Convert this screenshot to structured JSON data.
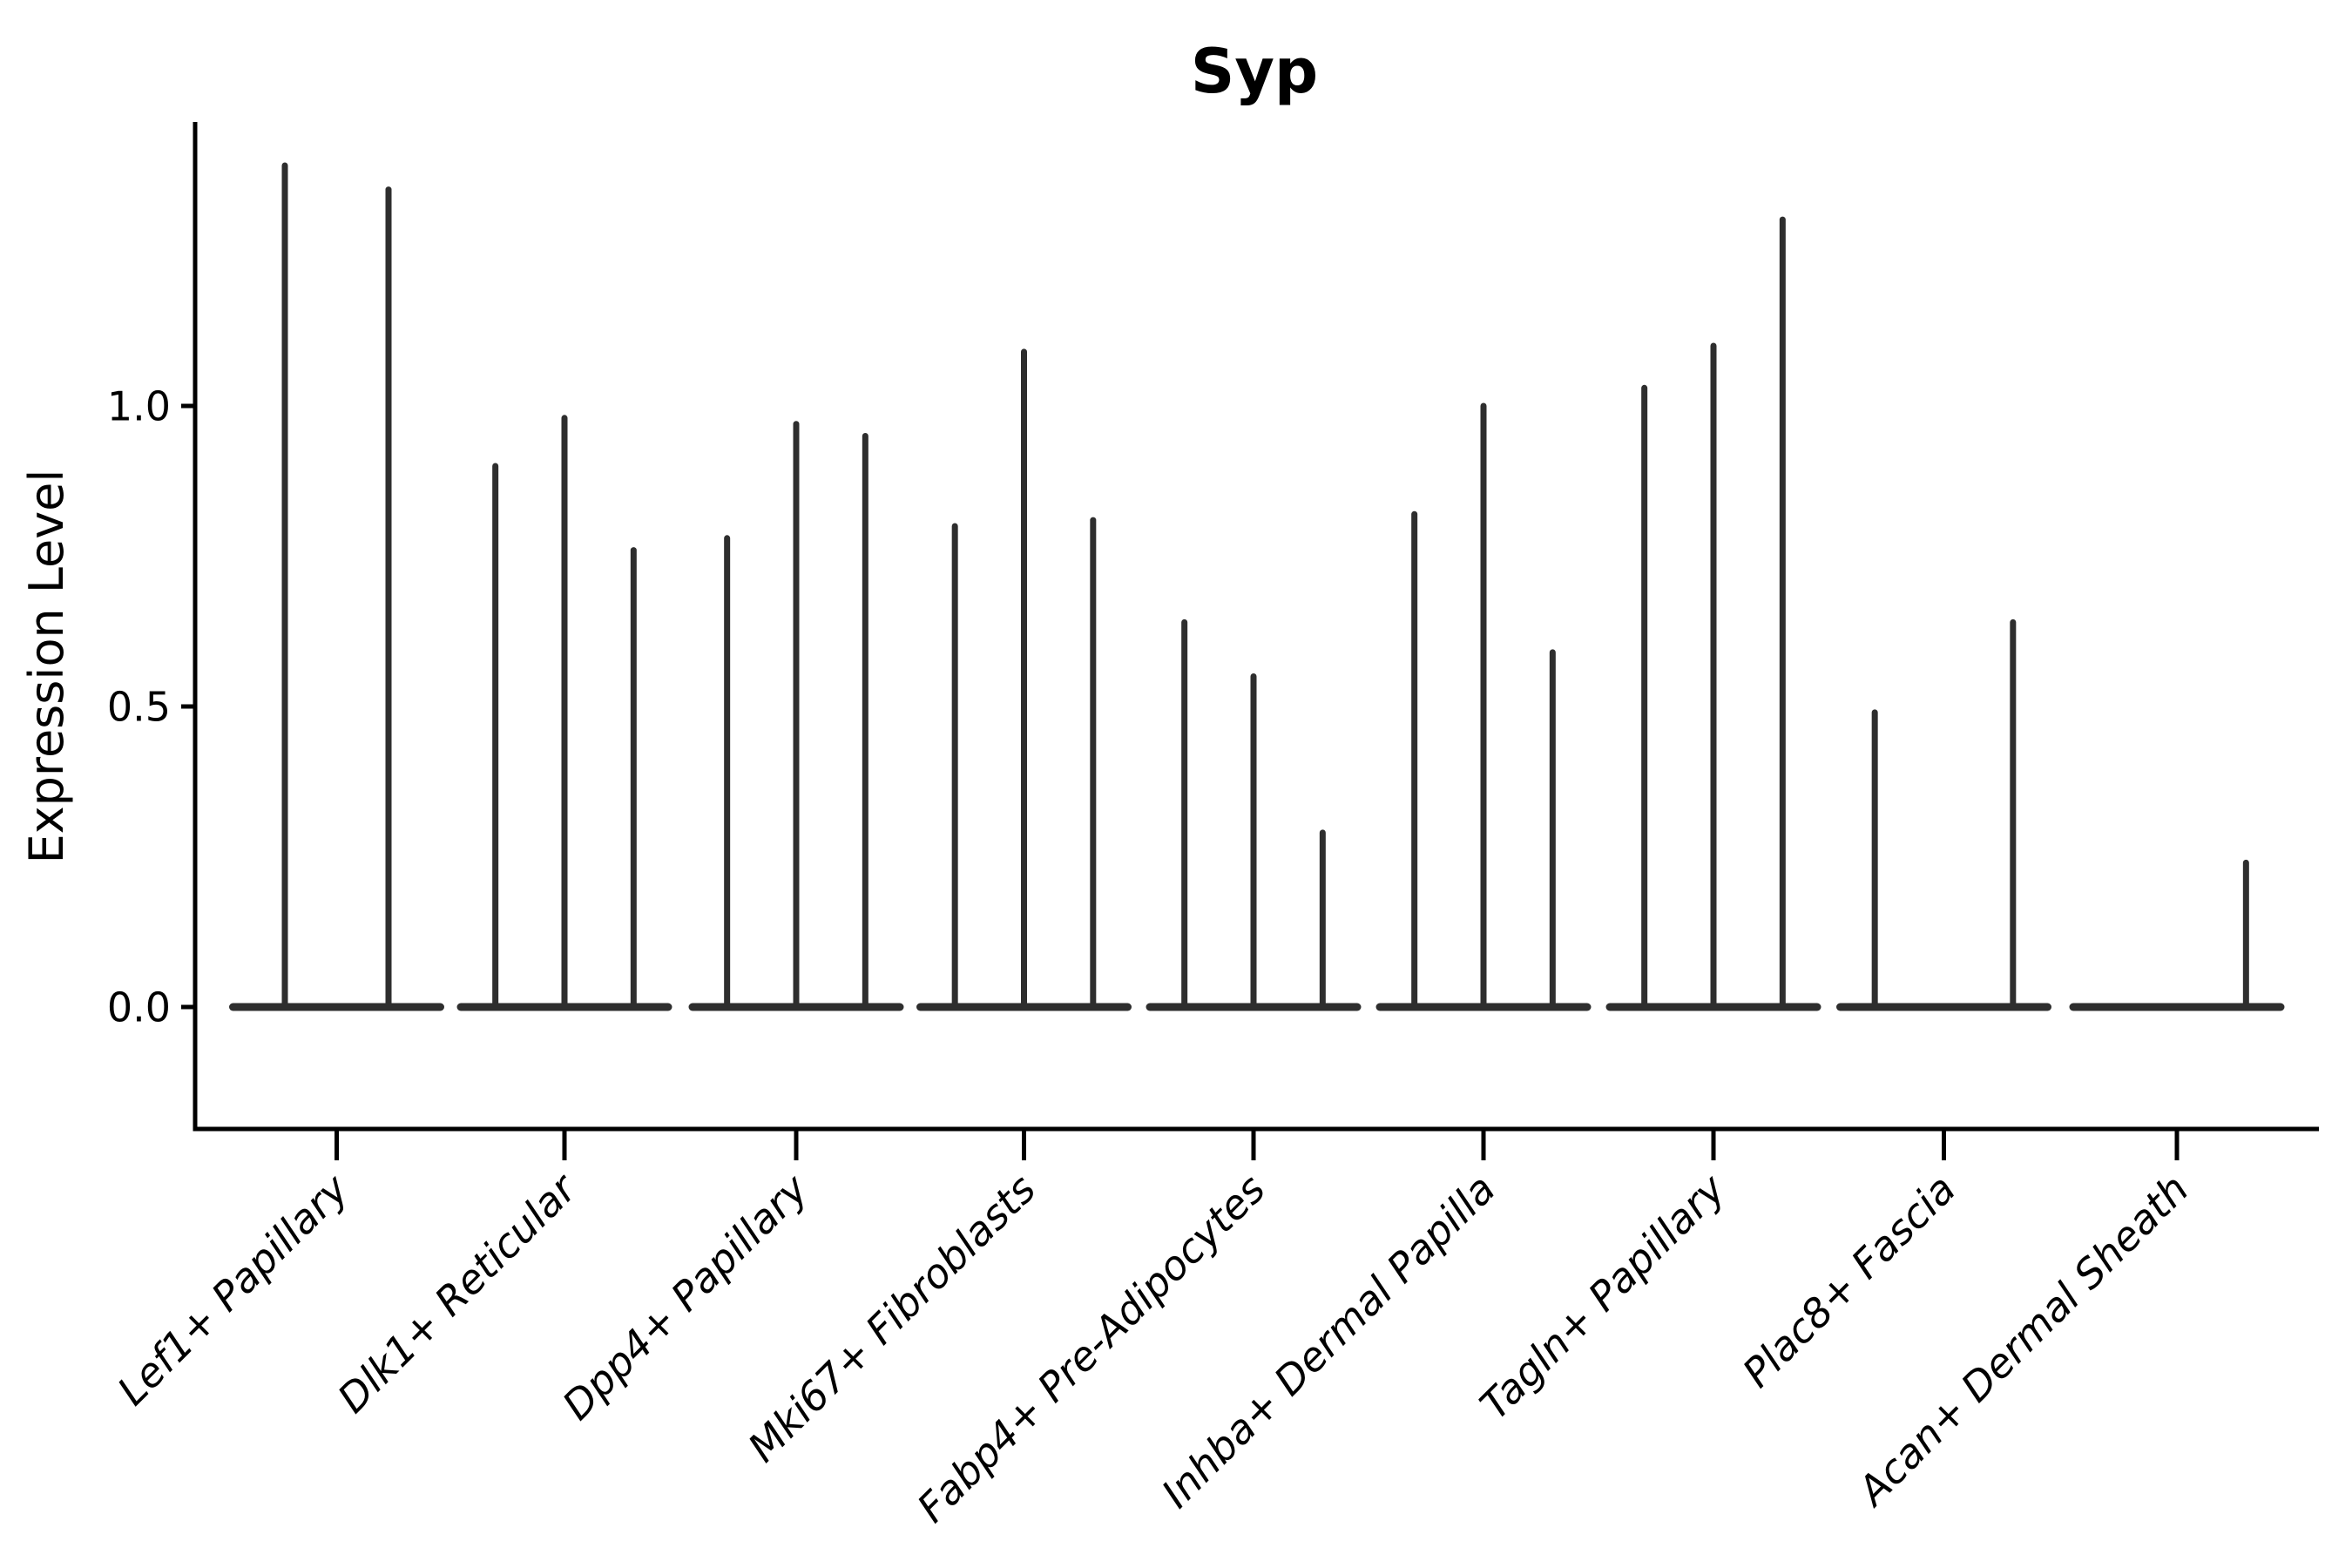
{
  "title": "Syp",
  "style": {
    "violin_line_color": "#2e2e2e",
    "axis_color": "#000000",
    "text_color": "#000000",
    "background": "#ffffff"
  },
  "chart_data": {
    "type": "violin",
    "title": "Syp",
    "xlabel": "",
    "ylabel": "Expression Level",
    "ytick_labels": [
      "0.0",
      "0.5",
      "1.0"
    ],
    "ytick_values": [
      0.0,
      0.5,
      1.0
    ],
    "ylim": [
      0.0,
      1.47
    ],
    "grid": false,
    "legend": "none",
    "violin_style": "thin spikes: expression is mostly 0 (flat collapsed violin at baseline) with sparse expressing cells forming narrow vertical density spikes; violins outlined dark grey, no fill",
    "categories": [
      "Lef1+ Papillary",
      "Dlk1+ Reticular",
      "Dpp4+ Papillary",
      "Mki67+ Fibroblasts",
      "Fabp4+ Pre-Adipocytes",
      "Inhba+ Dermal Papilla",
      "Tagln+ Papillary",
      "Plac8+ Fascia",
      "Acan+ Dermal Sheath"
    ],
    "groups": [
      {
        "category": "Lef1+ Papillary",
        "violin_peaks": [
          1.4,
          1.36
        ]
      },
      {
        "category": "Dlk1+ Reticular",
        "violin_peaks": [
          0.9,
          0.98,
          0.76
        ]
      },
      {
        "category": "Dpp4+ Papillary",
        "violin_peaks": [
          0.78,
          0.97,
          0.95
        ]
      },
      {
        "category": "Mki67+ Fibroblasts",
        "violin_peaks": [
          0.8,
          1.09,
          0.81
        ]
      },
      {
        "category": "Fabp4+ Pre-Adipocytes",
        "violin_peaks": [
          0.64,
          0.55,
          0.29
        ]
      },
      {
        "category": "Inhba+ Dermal Papilla",
        "violin_peaks": [
          0.82,
          1.0,
          0.59
        ]
      },
      {
        "category": "Tagln+ Papillary",
        "violin_peaks": [
          1.03,
          1.1,
          1.31
        ]
      },
      {
        "category": "Plac8+ Fascia",
        "violin_peaks": [
          0.49,
          0.0,
          0.64
        ]
      },
      {
        "category": "Acan+ Dermal Sheath",
        "violin_peaks": [
          0.0,
          0.0,
          0.24
        ]
      }
    ]
  }
}
